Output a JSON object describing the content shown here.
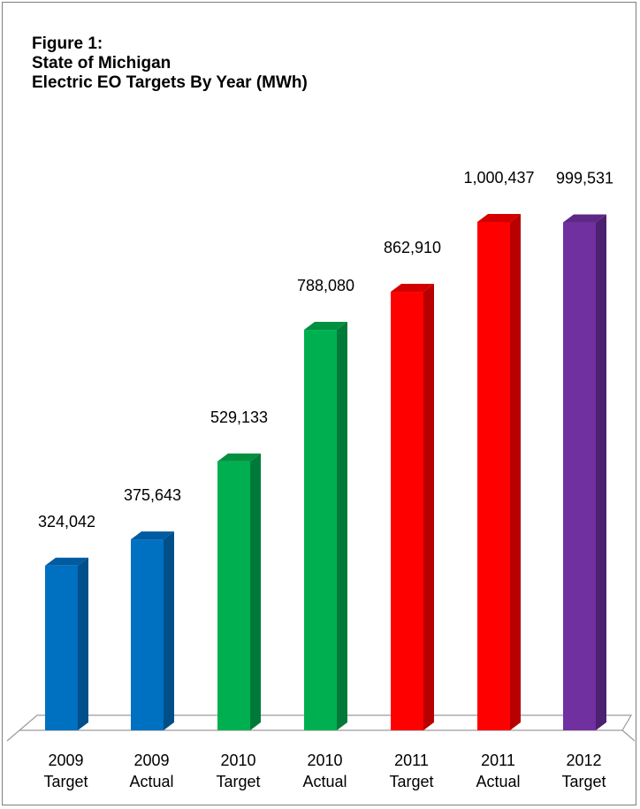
{
  "title_lines": [
    "Figure 1:",
    "State of Michigan",
    "Electric EO Targets By Year (MWh)"
  ],
  "chart_data": {
    "type": "bar",
    "title": "Figure 1: State of Michigan Electric EO Targets By Year (MWh)",
    "categories": [
      [
        "2009",
        "Target"
      ],
      [
        "2009",
        "Actual"
      ],
      [
        "2010",
        "Target"
      ],
      [
        "2010",
        "Actual"
      ],
      [
        "2011",
        "Target"
      ],
      [
        "2011",
        "Actual"
      ],
      [
        "2012",
        "Target"
      ]
    ],
    "values": [
      324042,
      375643,
      529133,
      788080,
      862910,
      1000437,
      999531
    ],
    "value_labels": [
      "324,042",
      "375,643",
      "529,133",
      "788,080",
      "862,910",
      "1,000,437",
      "999,531"
    ],
    "colors": [
      "#0070c0",
      "#0070c0",
      "#00b050",
      "#00b050",
      "#ff0000",
      "#ff0000",
      "#7030a0"
    ],
    "side_colors": [
      "#004f8a",
      "#004f8a",
      "#007a38",
      "#007a38",
      "#b80000",
      "#b80000",
      "#4d2070"
    ],
    "top_colors": [
      "#005ba0",
      "#005ba0",
      "#009040",
      "#009040",
      "#d40000",
      "#d40000",
      "#5e2888"
    ],
    "xlabel": "",
    "ylabel": "",
    "ylim": [
      0,
      1000437
    ],
    "grid": false,
    "legend": "none",
    "style": "3d-column"
  }
}
